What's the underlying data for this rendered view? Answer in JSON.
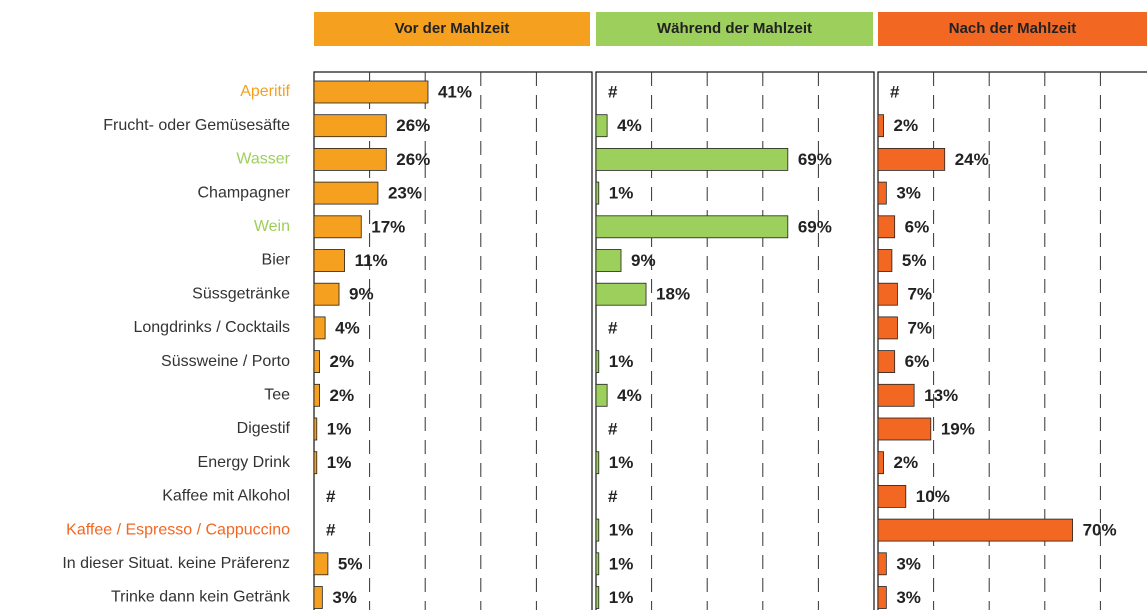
{
  "chart_data": {
    "type": "bar",
    "orientation": "horizontal",
    "categories": [
      "Aperitif",
      "Frucht- oder Gemüsesäfte",
      "Wasser",
      "Champagner",
      "Wein",
      "Bier",
      "Süssgetränke",
      "Longdrinks / Cocktails",
      "Süssweine / Porto",
      "Tee",
      "Digestif",
      "Energy Drink",
      "Kaffee mit Alkohol",
      "Kaffee / Espresso / Cappuccino",
      "In dieser Situat. keine Präferenz",
      "Trinke dann kein Getränk"
    ],
    "category_colors": [
      "#f5a01e",
      "#333333",
      "#9ccf5b",
      "#333333",
      "#9ccf5b",
      "#333333",
      "#333333",
      "#333333",
      "#333333",
      "#333333",
      "#333333",
      "#333333",
      "#333333",
      "#f26722",
      "#333333",
      "#333333"
    ],
    "series": [
      {
        "name": "Vor der Mahlzeit",
        "color": "#f5a01e",
        "values": [
          41,
          26,
          26,
          23,
          17,
          11,
          9,
          4,
          2,
          2,
          1,
          1,
          null,
          null,
          5,
          3
        ],
        "value_labels": [
          "41%",
          "26%",
          "26%",
          "23%",
          "17%",
          "11%",
          "9%",
          "4%",
          "2%",
          "2%",
          "1%",
          "1%",
          "#",
          "#",
          "5%",
          "3%"
        ]
      },
      {
        "name": "Während der Mahlzeit",
        "color": "#9ccf5b",
        "values": [
          null,
          4,
          69,
          1,
          69,
          9,
          18,
          null,
          1,
          4,
          null,
          1,
          null,
          1,
          1,
          1
        ],
        "value_labels": [
          "#",
          "4%",
          "69%",
          "1%",
          "69%",
          "9%",
          "18%",
          "#",
          "1%",
          "4%",
          "#",
          "1%",
          "#",
          "1%",
          "1%",
          "1%"
        ]
      },
      {
        "name": "Nach der Mahlzeit",
        "color": "#f26722",
        "values": [
          null,
          2,
          24,
          3,
          6,
          5,
          7,
          7,
          6,
          13,
          19,
          2,
          10,
          70,
          3,
          3
        ],
        "value_labels": [
          "#",
          "2%",
          "24%",
          "3%",
          "6%",
          "5%",
          "7%",
          "7%",
          "6%",
          "13%",
          "19%",
          "2%",
          "10%",
          "70%",
          "3%",
          "3%"
        ]
      }
    ],
    "xlim": [
      0,
      100
    ],
    "xticks": [
      20,
      40,
      60,
      80
    ],
    "grid": true
  }
}
